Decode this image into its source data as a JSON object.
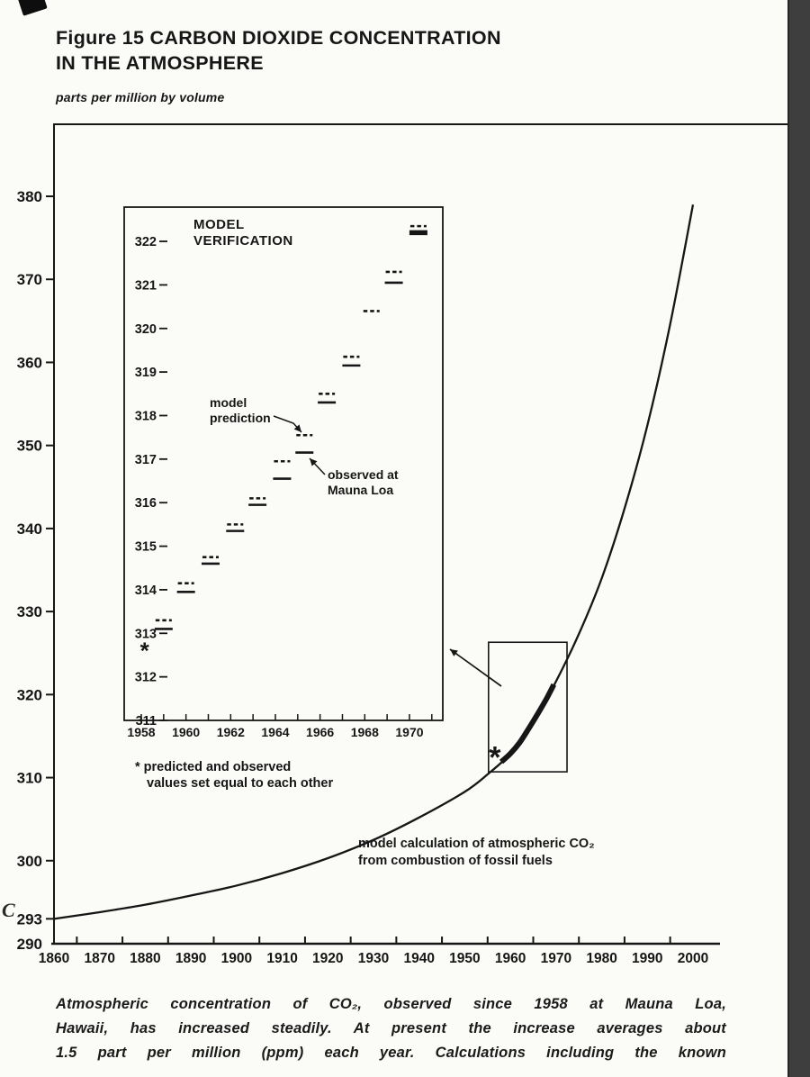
{
  "figure": {
    "title_line1": "Figure 15 CARBON DIOXIDE CONCENTRATION",
    "title_line2": "IN THE ATMOSPHERE",
    "units_label": "parts per million by volume",
    "stray_mark": "C"
  },
  "caption": {
    "lines": [
      "Atmospheric concentration of CO₂, observed since 1958 at Mauna Loa,",
      "Hawaii, has increased steadily. At present the increase averages about",
      "1.5 part per million (ppm) each year. Calculations including the known"
    ]
  },
  "chart_data": [
    {
      "id": "main",
      "type": "line",
      "title": "Figure 15 CARBON DIOXIDE CONCENTRATION IN THE ATMOSPHERE",
      "xlabel": "",
      "ylabel": "parts per million by volume",
      "xlim": [
        1860,
        2000
      ],
      "ylim": [
        290,
        383
      ],
      "grid": false,
      "x_ticks": [
        1860,
        1870,
        1880,
        1890,
        1900,
        1910,
        1920,
        1930,
        1940,
        1950,
        1960,
        1970,
        1980,
        1990,
        2000
      ],
      "y_ticks": [
        290,
        293,
        300,
        310,
        320,
        330,
        340,
        350,
        360,
        370,
        380
      ],
      "series": [
        {
          "name": "model calculation of atmospheric CO₂ from combustion of fossil fuels",
          "style": "solid",
          "x": [
            1860,
            1870,
            1880,
            1890,
            1900,
            1910,
            1920,
            1930,
            1940,
            1950,
            1955,
            1960,
            1965,
            1970,
            1975,
            1980,
            1985,
            1990,
            1995,
            2000
          ],
          "y": [
            293.0,
            293.8,
            294.7,
            295.8,
            297.0,
            298.5,
            300.3,
            302.5,
            305.2,
            308.3,
            310.4,
            312.9,
            316.6,
            321.6,
            327.3,
            334.0,
            342.4,
            352.4,
            364.6,
            379.0
          ]
        },
        {
          "name": "observed at Mauna Loa (thick overlay 1958-1970)",
          "style": "thick",
          "x": [
            1958,
            1960,
            1962,
            1964,
            1966,
            1968,
            1969.5
          ],
          "y": [
            311.9,
            312.9,
            314.2,
            315.9,
            317.7,
            319.6,
            321.2
          ]
        }
      ],
      "annotation_lines": [
        "model calculation of atmospheric CO₂",
        "from combustion of fossil fuels"
      ],
      "star": {
        "x": 1956.6,
        "y": 312.4
      },
      "zoom_box": {
        "x1": 1955.2,
        "x2": 1972.4,
        "y1": 310.7,
        "y2": 326.3
      }
    },
    {
      "id": "inset",
      "type": "line",
      "title": "MODEL VERIFICATION",
      "xlabel": "",
      "ylabel": "",
      "xlim": [
        1958,
        1971.4
      ],
      "ylim": [
        311,
        322.7
      ],
      "grid": false,
      "x_ticks": [
        1958,
        1960,
        1962,
        1964,
        1966,
        1968,
        1970
      ],
      "y_ticks": [
        311,
        312,
        313,
        314,
        315,
        316,
        317,
        318,
        319,
        320,
        321,
        322
      ],
      "predicted_label_lines": [
        "model",
        "prediction"
      ],
      "observed_label_lines": [
        "observed at",
        "Mauna Loa"
      ],
      "pairs": [
        {
          "year": 1959.0,
          "predicted": 313.3,
          "observed": 313.1
        },
        {
          "year": 1960.0,
          "predicted": 314.15,
          "observed": 313.95
        },
        {
          "year": 1961.1,
          "predicted": 314.75,
          "observed": 314.6
        },
        {
          "year": 1962.2,
          "predicted": 315.5,
          "observed": 315.35
        },
        {
          "year": 1963.2,
          "predicted": 316.1,
          "observed": 315.95
        },
        {
          "year": 1964.3,
          "predicted": 316.95,
          "observed": 316.55
        },
        {
          "year": 1965.3,
          "predicted": 317.55,
          "observed": 317.15
        },
        {
          "year": 1966.3,
          "predicted": 318.5,
          "observed": 318.3
        },
        {
          "year": 1967.4,
          "predicted": 319.35,
          "observed": 319.15
        },
        {
          "year": 1968.3,
          "predicted": 320.4,
          "observed": null
        },
        {
          "year": 1969.3,
          "predicted": 321.3,
          "observed": 321.05
        },
        {
          "year": 1970.4,
          "predicted": 322.35,
          "observed": 322.2,
          "observed_thick": true
        }
      ],
      "star": {
        "year": 1958.15,
        "value": 312.6
      },
      "footnote_lines": [
        "* predicted and observed",
        "values set equal to each other"
      ]
    }
  ]
}
